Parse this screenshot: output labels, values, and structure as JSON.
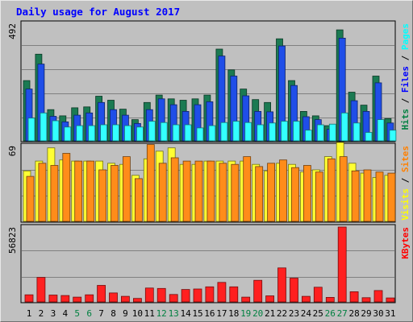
{
  "title": "Daily usage for August 2017",
  "chart_data": [
    {
      "type": "bar",
      "title": "Daily usage for August 2017",
      "ytick": "492",
      "ylim": [
        0,
        492
      ],
      "legend_placement": "right, rotated",
      "legend": [
        {
          "label": "Pages",
          "color": "#00ffff"
        },
        {
          "label": "Files",
          "color": "#0000ff"
        },
        {
          "label": "Hits",
          "color": "#008040"
        }
      ],
      "categories": [
        "1",
        "2",
        "3",
        "4",
        "5",
        "6",
        "7",
        "8",
        "9",
        "10",
        "11",
        "12",
        "13",
        "14",
        "15",
        "16",
        "17",
        "18",
        "19",
        "20",
        "21",
        "22",
        "23",
        "24",
        "25",
        "26",
        "27",
        "28",
        "29",
        "30",
        "31"
      ],
      "weekend_day_indices": [
        4,
        5,
        11,
        12,
        18,
        19,
        25,
        26
      ],
      "series": [
        {
          "name": "Hits",
          "color": "#1b7a52",
          "values": [
            270,
            388,
            140,
            112,
            148,
            152,
            200,
            182,
            142,
            95,
            172,
            205,
            188,
            182,
            188,
            205,
            411,
            318,
            232,
            185,
            172,
            457,
            270,
            132,
            112,
            68,
            497,
            218,
            160,
            290,
            100
          ]
        },
        {
          "name": "Files",
          "color": "#1f4ee8",
          "values": [
            232,
            344,
            110,
            85,
            115,
            125,
            172,
            140,
            115,
            78,
            140,
            188,
            162,
            132,
            162,
            175,
            380,
            290,
            202,
            132,
            130,
            425,
            248,
            108,
            95,
            52,
            460,
            180,
            132,
            260,
            80
          ]
        },
        {
          "name": "Pages",
          "color": "#33ffff",
          "values": [
            102,
            125,
            90,
            62,
            68,
            68,
            72,
            72,
            68,
            62,
            88,
            82,
            72,
            72,
            58,
            68,
            82,
            88,
            82,
            72,
            80,
            88,
            88,
            48,
            72,
            75,
            125,
            80,
            38,
            95,
            48
          ]
        }
      ]
    },
    {
      "type": "bar",
      "ytick": "69",
      "ylim": [
        0,
        69
      ],
      "legend_placement": "right, rotated",
      "legend": [
        {
          "label": "Sites",
          "color": "#ff8000"
        },
        {
          "label": "Visits",
          "color": "#ffff00"
        }
      ],
      "categories": [
        "1",
        "2",
        "3",
        "4",
        "5",
        "6",
        "7",
        "8",
        "9",
        "10",
        "11",
        "12",
        "13",
        "14",
        "15",
        "16",
        "17",
        "18",
        "19",
        "20",
        "21",
        "22",
        "23",
        "24",
        "25",
        "26",
        "27",
        "28",
        "29",
        "30",
        "31"
      ],
      "series": [
        {
          "name": "Visits",
          "color": "#ffff33",
          "values": [
            46,
            55,
            67,
            56,
            55,
            55,
            55,
            53,
            52,
            42,
            57,
            64,
            67,
            52,
            52,
            55,
            55,
            55,
            55,
            52,
            46,
            53,
            52,
            45,
            47,
            59,
            72,
            53,
            44,
            40,
            42
          ]
        },
        {
          "name": "Sites",
          "color": "#ff8c1a",
          "values": [
            41,
            53,
            51,
            62,
            55,
            55,
            47,
            51,
            59,
            39,
            70,
            53,
            58,
            55,
            55,
            55,
            53,
            52,
            59,
            50,
            53,
            56,
            49,
            51,
            45,
            57,
            59,
            46,
            47,
            45,
            44
          ]
        }
      ]
    },
    {
      "type": "bar",
      "ytick": "56823",
      "ylim": [
        0,
        56823
      ],
      "legend_placement": "right, rotated",
      "legend": [
        {
          "label": "KBytes",
          "color": "#ff0000"
        }
      ],
      "categories": [
        "1",
        "2",
        "3",
        "4",
        "5",
        "6",
        "7",
        "8",
        "9",
        "10",
        "11",
        "12",
        "13",
        "14",
        "15",
        "16",
        "17",
        "18",
        "19",
        "20",
        "21",
        "22",
        "23",
        "24",
        "25",
        "26",
        "27",
        "28",
        "29",
        "30",
        "31"
      ],
      "series": [
        {
          "name": "KBytes",
          "color": "#ff2020",
          "values": [
            5400,
            18600,
            5200,
            4800,
            3600,
            5400,
            12500,
            6800,
            4200,
            2600,
            10500,
            10200,
            5600,
            9400,
            9800,
            11400,
            14800,
            11400,
            3600,
            16400,
            4600,
            25800,
            18000,
            4200,
            11100,
            3400,
            56823,
            7700,
            3200,
            8600,
            3000
          ]
        }
      ]
    }
  ]
}
